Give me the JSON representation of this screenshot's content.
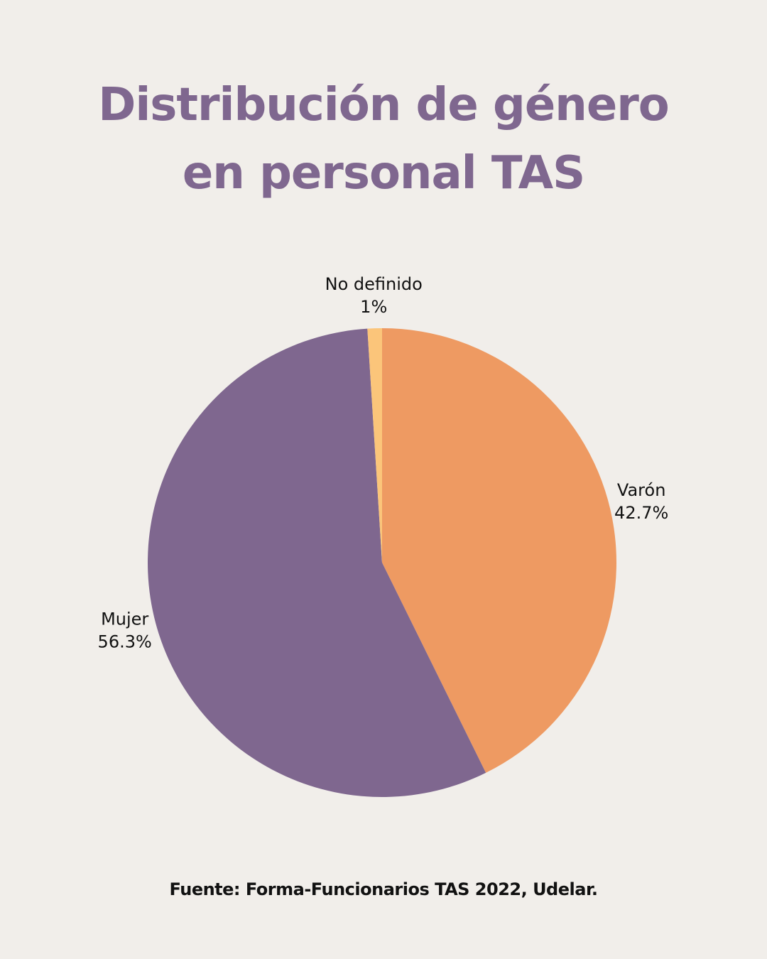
{
  "chart_data": {
    "type": "pie",
    "title": "Distribución de género en personal TAS",
    "categories": [
      "Varón",
      "Mujer",
      "No definido"
    ],
    "values": [
      42.7,
      56.3,
      1
    ],
    "value_labels": [
      "42.7%",
      "56.3%",
      "1%"
    ],
    "colors": [
      "#ee9a62",
      "#7f678f",
      "#fbc57a"
    ],
    "source": "Fuente: Forma-Funcionarios TAS 2022, Udelar."
  }
}
